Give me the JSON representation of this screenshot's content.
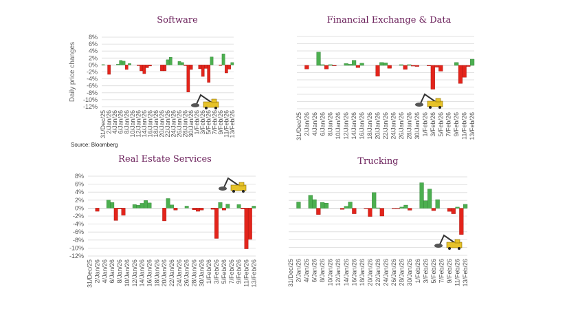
{
  "source": "Source: Bloomberg",
  "colors": {
    "positive": "#4caf50",
    "negative": "#e3241b",
    "title": "#6a1f5a",
    "grid": "#d9d9d9"
  },
  "icon": "excavator-icon",
  "dates": [
    "31/Dec/25",
    "1/Jan/26",
    "2/Jan/26",
    "3/Jan/26",
    "4/Jan/26",
    "5/Jan/26",
    "6/Jan/26",
    "7/Jan/26",
    "8/Jan/26",
    "9/Jan/26",
    "10/Jan/26",
    "11/Jan/26",
    "12/Jan/26",
    "13/Jan/26",
    "14/Jan/26",
    "15/Jan/26",
    "16/Jan/26",
    "17/Jan/26",
    "18/Jan/26",
    "19/Jan/26",
    "20/Jan/26",
    "21/Jan/26",
    "22/Jan/26",
    "23/Jan/26",
    "24/Jan/26",
    "25/Jan/26",
    "26/Jan/26",
    "27/Jan/26",
    "28/Jan/26",
    "29/Jan/26",
    "30/Jan/26",
    "31/Jan/26",
    "1/Feb/26",
    "2/Feb/26",
    "3/Feb/26",
    "4/Feb/26",
    "5/Feb/26",
    "6/Feb/26",
    "7/Feb/26",
    "8/Feb/26",
    "9/Feb/26",
    "10/Feb/26",
    "11/Feb/26",
    "12/Feb/26",
    "13/Feb/26"
  ],
  "chart_data": [
    {
      "type": "bar",
      "title": "Software",
      "ylabel": "Daily price changes",
      "xlabel": "",
      "ylim": [
        -12,
        8
      ],
      "yticks": [
        "8%",
        "6%",
        "4%",
        "2%",
        "0%",
        "-2%",
        "-4%",
        "-6%",
        "-8%",
        "-10%",
        "-12%"
      ],
      "show_yticks": true,
      "grid": true,
      "values": [
        0.1,
        null,
        -2.7,
        null,
        null,
        0.2,
        1.3,
        1.1,
        -1.3,
        0.4,
        null,
        null,
        -0.2,
        -1.7,
        -2.5,
        -0.8,
        -0.3,
        null,
        null,
        null,
        -1.7,
        -1.7,
        1.5,
        2.2,
        null,
        null,
        1.0,
        0.7,
        -0.2,
        -7.8,
        -1.3,
        null,
        null,
        -1.1,
        -3.3,
        -1.0,
        -5.0,
        2.3,
        null,
        null,
        -0.1,
        3.2,
        -2.3,
        -1.2,
        0.7
      ]
    },
    {
      "type": "bar",
      "title": "Financial Exchange & Data",
      "ylabel": "",
      "xlabel": "",
      "ylim": [
        -12,
        8
      ],
      "yticks": [],
      "show_yticks": false,
      "grid": true,
      "values": [
        0,
        null,
        -1.0,
        null,
        null,
        3.7,
        0.2,
        -1.0,
        0.2,
        -0.1,
        null,
        null,
        0.5,
        0.3,
        1.4,
        -0.6,
        0.6,
        null,
        null,
        null,
        -3.0,
        0.8,
        0.7,
        -0.8,
        null,
        null,
        0.2,
        -1.1,
        0.2,
        -0.2,
        -0.3,
        null,
        null,
        -0.1,
        -6.6,
        -0.5,
        -1.6,
        0,
        null,
        null,
        0.8,
        -5.0,
        -3.3,
        -0.3,
        1.7
      ]
    },
    {
      "type": "bar",
      "title": "Real Estate Services",
      "ylabel": "",
      "xlabel": "",
      "ylim": [
        -12,
        8
      ],
      "yticks": [
        "8%",
        "6%",
        "4%",
        "2%",
        "0%",
        "-2%",
        "-4%",
        "-6%",
        "-8%",
        "-10%",
        "-12%"
      ],
      "show_yticks": true,
      "grid": true,
      "values": [
        0,
        null,
        -0.8,
        null,
        null,
        2.0,
        1.4,
        -3.1,
        -0.2,
        -1.8,
        null,
        null,
        0.9,
        0.7,
        1.2,
        1.9,
        1.3,
        null,
        null,
        null,
        -3.2,
        2.4,
        0.8,
        -0.5,
        null,
        null,
        0.5,
        0,
        -0.4,
        -0.8,
        -0.5,
        null,
        null,
        -0.3,
        -7.6,
        1.4,
        -0.5,
        1.0,
        null,
        null,
        0.9,
        -0.2,
        -10.2,
        -7.8,
        0.5
      ]
    },
    {
      "type": "bar",
      "title": "Trucking",
      "ylabel": "",
      "xlabel": "",
      "ylim": [
        -12,
        8
      ],
      "yticks": [],
      "show_yticks": false,
      "grid": true,
      "values": [
        0,
        null,
        1.6,
        null,
        null,
        3.3,
        2.2,
        -1.6,
        1.5,
        1.3,
        null,
        null,
        0,
        -0.3,
        0.5,
        1.6,
        -1.4,
        null,
        null,
        -0.1,
        -2.1,
        4.0,
        0.1,
        -2.0,
        null,
        null,
        -0.1,
        -0.1,
        0.3,
        0.8,
        -0.5,
        null,
        null,
        6.5,
        1.9,
        4.9,
        -0.6,
        2.2,
        null,
        null,
        -0.8,
        -1.4,
        0.3,
        -6.7,
        1.0
      ]
    }
  ]
}
